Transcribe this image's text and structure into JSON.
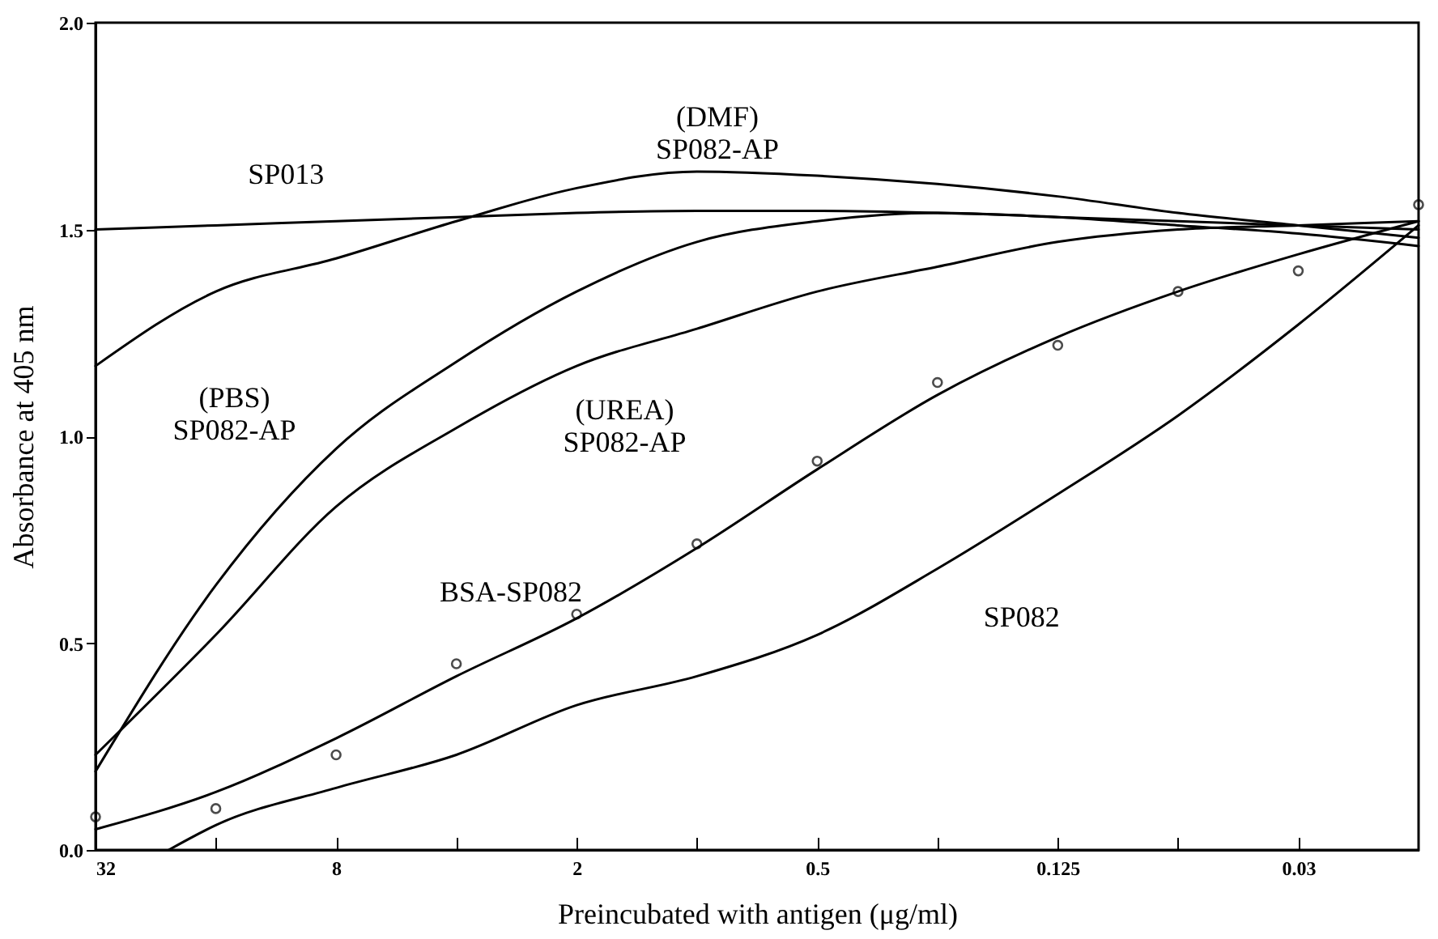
{
  "chart_data": {
    "type": "line",
    "xlabel": "Preincubated with antigen (μg/ml)",
    "ylabel": "Absorbance at 405 nm",
    "log": "x",
    "grid": false,
    "xlim": [
      32,
      0.015625
    ],
    "xticks": [
      32,
      {
        "value": 16,
        "label": null
      },
      8,
      {
        "value": 4,
        "label": null
      },
      2,
      {
        "value": 1,
        "label": null
      },
      0.5,
      {
        "value": 0.25,
        "label": null
      },
      0.125,
      {
        "value": 0.0625,
        "label": null
      },
      {
        "value": 0.03125,
        "label": "0.03"
      }
    ],
    "ylim": [
      0,
      2
    ],
    "yticks": [
      {
        "value": 0,
        "label": "0.0"
      },
      {
        "value": 0.5,
        "label": "0.5"
      },
      {
        "value": 1,
        "label": "1.0"
      },
      {
        "value": 1.5,
        "label": "1.5"
      },
      {
        "value": 2,
        "label": "2.0"
      }
    ],
    "series": [
      {
        "type": "scatter",
        "marker": "circle",
        "color": "#000000",
        "x": [
          32,
          16,
          8,
          4,
          2,
          1,
          0.5,
          0.25,
          0.125,
          0.0625,
          0.03125,
          0.015625
        ],
        "values": [
          0.08,
          0.1,
          0.23,
          0.45,
          0.57,
          0.74,
          0.94,
          1.13,
          1.22,
          1.35,
          1.4,
          1.56
        ]
      },
      {
        "type": "line",
        "name": "BSA-SP082",
        "color": "#000000",
        "x": [
          32,
          16,
          8,
          4,
          2,
          1,
          0.5,
          0.25,
          0.125,
          0.0625,
          0.03125,
          0.015625
        ],
        "values": [
          0.05,
          0.14,
          0.27,
          0.42,
          0.56,
          0.73,
          0.92,
          1.1,
          1.24,
          1.35,
          1.44,
          1.52
        ]
      },
      {
        "type": "line",
        "name": "SP082",
        "color": "#000000",
        "x": [
          21,
          16,
          8,
          4,
          2,
          1,
          0.5,
          0.25,
          0.125,
          0.0625,
          0.03125,
          0.015625
        ],
        "values": [
          0,
          0.06,
          0.15,
          0.23,
          0.35,
          0.42,
          0.52,
          0.68,
          0.86,
          1.05,
          1.27,
          1.51
        ]
      },
      {
        "type": "line",
        "name": "SP013",
        "color": "#000000",
        "x": [
          32,
          16,
          8,
          4,
          2,
          1,
          0.5,
          0.25,
          0.125,
          0.0625,
          0.03125,
          0.015625
        ],
        "values": [
          1.5,
          1.51,
          1.52,
          1.53,
          1.54,
          1.545,
          1.545,
          1.54,
          1.53,
          1.51,
          1.49,
          1.46
        ]
      },
      {
        "type": "line",
        "name": "(DMF)\nSP082-AP",
        "color": "#000000",
        "x": [
          32,
          16,
          8,
          4,
          2,
          1,
          0.5,
          0.25,
          0.125,
          0.0625,
          0.03125,
          0.015625
        ],
        "values": [
          1.17,
          1.35,
          1.43,
          1.52,
          1.6,
          1.64,
          1.63,
          1.61,
          1.58,
          1.54,
          1.51,
          1.48
        ]
      },
      {
        "type": "line",
        "name": "(PBS)\nSP082-AP",
        "color": "#000000",
        "x": [
          32,
          16,
          8,
          4,
          2,
          1,
          0.5,
          0.25,
          0.125,
          0.0625,
          0.03125,
          0.015625
        ],
        "values": [
          0.19,
          0.64,
          0.97,
          1.18,
          1.35,
          1.47,
          1.52,
          1.54,
          1.53,
          1.52,
          1.51,
          1.5
        ]
      },
      {
        "type": "line",
        "name": "(UREA)\nSP082-AP",
        "color": "#000000",
        "x": [
          32,
          16,
          8,
          4,
          2,
          1,
          0.5,
          0.25,
          0.125,
          0.0625,
          0.03125,
          0.015625
        ],
        "values": [
          0.23,
          0.52,
          0.83,
          1.02,
          1.17,
          1.26,
          1.35,
          1.41,
          1.47,
          1.5,
          1.51,
          1.52
        ]
      }
    ]
  }
}
